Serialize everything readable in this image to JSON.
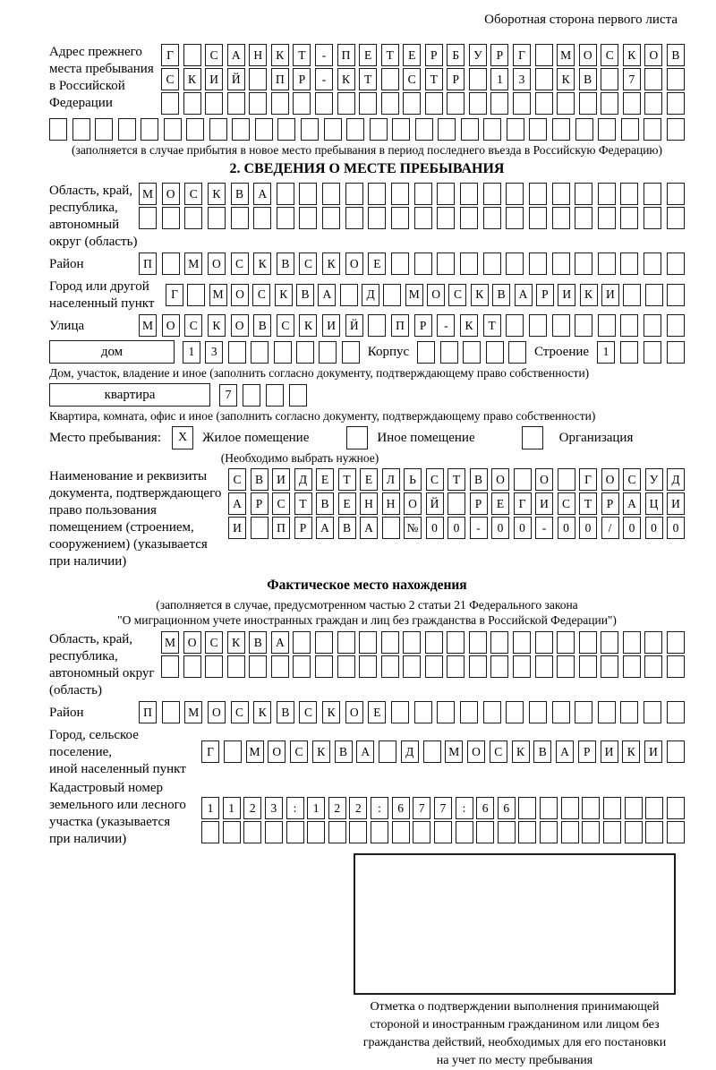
{
  "page": {
    "header_note": "Оборотная сторона первого листа"
  },
  "prev_address": {
    "label_lines": [
      "Адрес прежнего",
      "места пребывания",
      "в Российской",
      "Федерации"
    ],
    "rows": [
      {
        "len": 24,
        "text": "Г САНКТ-ПЕТЕРБУРГ МОСКОВ"
      },
      {
        "len": 24,
        "text": "СКИЙ ПР-КТ СТР 13 КВ 7"
      },
      {
        "len": 24,
        "text": ""
      }
    ],
    "full_row": {
      "len": 28,
      "text": ""
    },
    "note": "(заполняется в случае прибытия в новое место пребывания в период последнего въезда в Российскую Федерацию)"
  },
  "section2": {
    "title": "2. СВЕДЕНИЯ О МЕСТЕ ПРЕБЫВАНИЯ",
    "region": {
      "label_lines": [
        "Область, край,",
        "республика,",
        "автономный",
        "округ (область)"
      ],
      "rows": [
        {
          "len": 24,
          "text": "МОСКВА"
        },
        {
          "len": 24,
          "text": ""
        }
      ]
    },
    "district": {
      "label": "Район",
      "row": {
        "len": 24,
        "text": "П МОСКВСКОЕ"
      }
    },
    "city": {
      "label_lines": [
        "Город или другой",
        "населенный пункт"
      ],
      "row": {
        "len": 24,
        "text": "Г МОСКВА Д МОСКВАРИКИ"
      }
    },
    "street": {
      "label": "Улица",
      "row": {
        "len": 24,
        "text": "МОСКОВСКИЙ ПР-КТ"
      }
    },
    "house_row": {
      "house_label": "дом",
      "house_cells": {
        "len": 8,
        "text": "13"
      },
      "korpus_label": "Корпус",
      "korpus_cells": {
        "len": 5,
        "text": ""
      },
      "stroenie_label": "Строение",
      "stroenie_cells": {
        "len": 4,
        "text": "1"
      }
    },
    "house_note": "Дом, участок, владение и иное (заполнить согласно документу, подтверждающему право собственности)",
    "apartment_row": {
      "label": "квартира",
      "cells": {
        "len": 4,
        "text": "7"
      }
    },
    "apartment_note": "Квартира, комната, офис и иное (заполнить согласно документу, подтверждающему право собственности)",
    "stay_type": {
      "label": "Место пребывания:",
      "options": [
        {
          "label": "Жилое помещение",
          "mark": "X"
        },
        {
          "label": "Иное помещение",
          "mark": ""
        },
        {
          "label": "Организация",
          "mark": ""
        }
      ],
      "note": "(Необходимо выбрать нужное)"
    },
    "document": {
      "label_lines": [
        "Наименование и реквизиты",
        "документа, подтверждающего",
        "право пользования",
        "помещением (строением,",
        "сооружением) (указывается",
        "при наличии)"
      ],
      "rows": [
        {
          "len": 21,
          "text": "СВИДЕТЕЛЬСТВО О ГОСУД"
        },
        {
          "len": 21,
          "text": "АРСТВЕННОЙ РЕГИСТРАЦИ"
        },
        {
          "len": 21,
          "text": "И ПРАВА №00-00-00/000"
        }
      ]
    }
  },
  "actual_location": {
    "title": "Фактическое место нахождения",
    "note_lines": [
      "(заполняется в случае, предусмотренном частью 2 статьи 21 Федерального закона",
      "\"О миграционном учете иностранных граждан и лиц без гражданства в Российской Федерации\")"
    ],
    "region": {
      "label_lines": [
        "Область, край,",
        "республика,",
        "автономный округ",
        "(область)"
      ],
      "rows": [
        {
          "len": 24,
          "text": "МОСКВА"
        },
        {
          "len": 24,
          "text": ""
        }
      ]
    },
    "district": {
      "label": "Район",
      "row": {
        "len": 24,
        "text": "П МОСКВСКОЕ"
      }
    },
    "city": {
      "label_lines": [
        "Город, сельское поселение,",
        "иной населенный пункт"
      ],
      "row": {
        "len": 22,
        "text": "Г МОСКВА Д МОСКВАРИКИ"
      }
    },
    "cadastral": {
      "label_lines": [
        "Кадастровый номер",
        "земельного или лесного",
        "участка (указывается",
        "при наличии)"
      ],
      "rows": [
        {
          "len": 23,
          "text": "1123:122:677:66"
        },
        {
          "len": 23,
          "text": ""
        }
      ]
    }
  },
  "confirmation": {
    "note_lines": [
      "Отметка о подтверждении выполнения принимающей",
      "стороной и иностранным гражданином или лицом без",
      "гражданства действий, необходимых для его постановки",
      "на учет по месту пребывания"
    ]
  }
}
